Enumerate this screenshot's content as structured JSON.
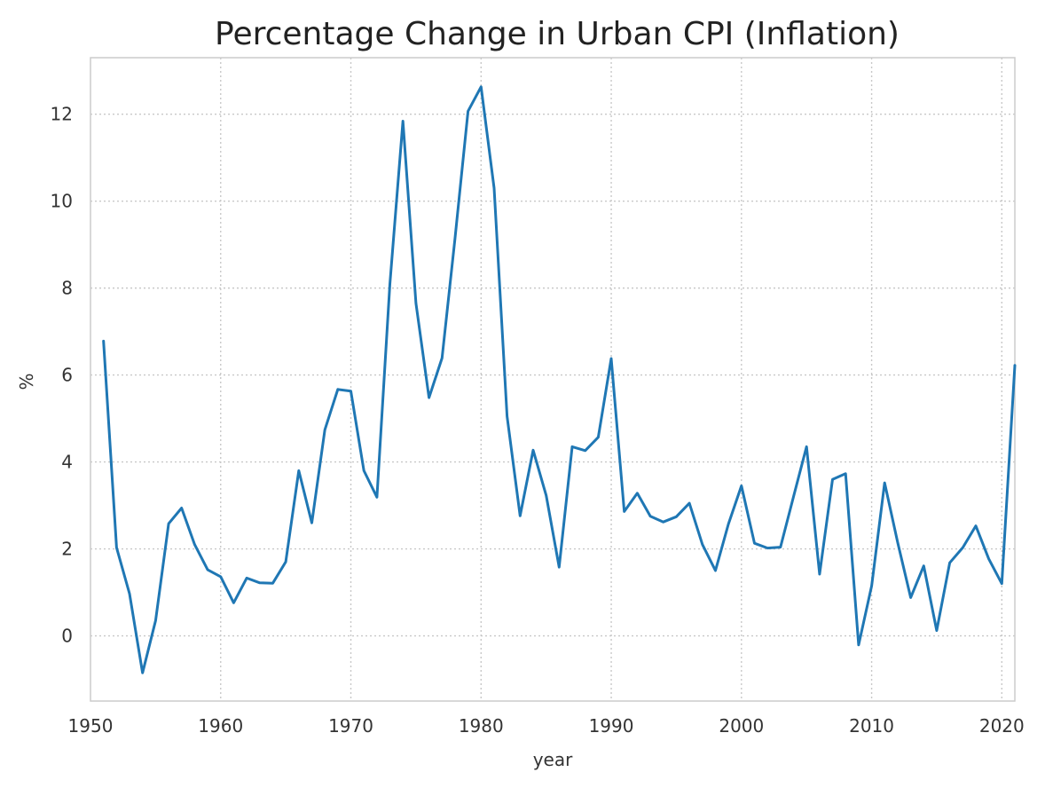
{
  "chart_data": {
    "type": "line",
    "title": "Percentage Change in Urban CPI (Inflation)",
    "xlabel": "year",
    "ylabel": "%",
    "xlim": [
      1950,
      2021
    ],
    "ylim": [
      -1.5,
      13.3
    ],
    "xticks": [
      1950,
      1960,
      1970,
      1980,
      1990,
      2000,
      2010,
      2020
    ],
    "yticks": [
      0,
      2,
      4,
      6,
      8,
      10,
      12
    ],
    "grid": true,
    "line_color": "#1f77b4",
    "series": [
      {
        "x": [
          1951,
          1952,
          1953,
          1954,
          1955,
          1956,
          1957,
          1958,
          1959,
          1960,
          1961,
          1962,
          1963,
          1964,
          1965,
          1966,
          1967,
          1968,
          1969,
          1970,
          1971,
          1972,
          1973,
          1974,
          1975,
          1976,
          1977,
          1978,
          1979,
          1980,
          1981,
          1982,
          1983,
          1984,
          1985,
          1986,
          1987,
          1988,
          1989,
          1990,
          1991,
          1992,
          1993,
          1994,
          1995,
          1996,
          1997,
          1998,
          1999,
          2000,
          2001,
          2002,
          2003,
          2004,
          2005,
          2006,
          2007,
          2008,
          2009,
          2010,
          2011,
          2012,
          2013,
          2014,
          2015,
          2016,
          2017,
          2018,
          2019,
          2020,
          2021
        ],
        "values": [
          6.78,
          2.03,
          0.97,
          -0.85,
          0.35,
          2.58,
          2.94,
          2.1,
          1.52,
          1.36,
          0.76,
          1.33,
          1.22,
          1.21,
          1.7,
          3.8,
          2.6,
          4.74,
          5.67,
          5.63,
          3.8,
          3.19,
          8.09,
          11.84,
          7.65,
          5.48,
          6.39,
          9.14,
          12.07,
          12.63,
          10.3,
          5.05,
          2.76,
          4.27,
          3.23,
          1.58,
          4.35,
          4.26,
          4.57,
          6.38,
          2.86,
          3.28,
          2.75,
          2.62,
          2.74,
          3.05,
          2.1,
          1.5,
          2.57,
          3.45,
          2.13,
          2.02,
          2.04,
          3.2,
          4.35,
          1.42,
          3.6,
          3.73,
          -0.21,
          1.15,
          3.52,
          2.15,
          0.88,
          1.61,
          0.12,
          1.68,
          2.03,
          2.53,
          1.77,
          1.2,
          6.22
        ]
      }
    ]
  }
}
